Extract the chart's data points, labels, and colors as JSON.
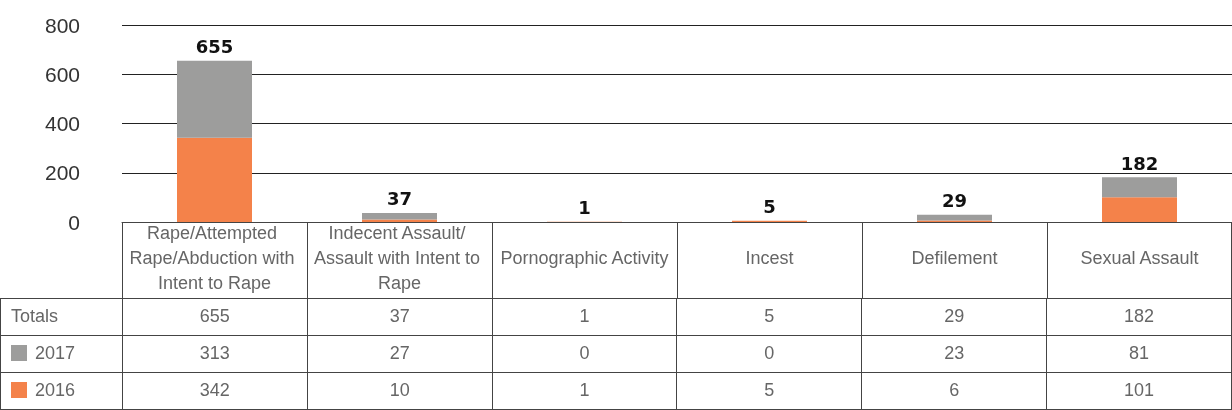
{
  "chart_data": {
    "type": "bar",
    "stacked": true,
    "categories": [
      "Rape/Attempted Rape/Abduction with Intent to Rape",
      "Indecent Assault/ Assault with Intent to Rape",
      "Pornographic Activity",
      "Incest",
      "Defilement",
      "Sexual Assault"
    ],
    "series": [
      {
        "name": "2016",
        "color": "#f4824a",
        "values": [
          342,
          10,
          1,
          5,
          6,
          101
        ]
      },
      {
        "name": "2017",
        "color": "#9d9d9c",
        "values": [
          313,
          27,
          0,
          0,
          23,
          81
        ]
      }
    ],
    "totals": [
      "655",
      "37",
      "1",
      "5",
      "29",
      "182"
    ],
    "annotations": [
      "Totals"
    ],
    "data_labels": true,
    "legend": "bottom left",
    "ylim": [
      0,
      800
    ],
    "yticks": [
      0,
      200,
      400,
      600,
      800
    ],
    "grid": "y"
  }
}
